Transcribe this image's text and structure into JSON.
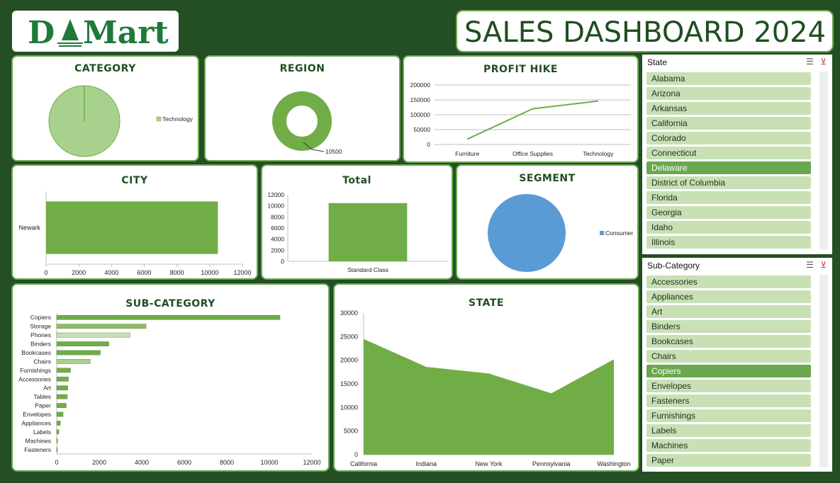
{
  "header": {
    "logo_text": "DMart",
    "title": "SALES DASHBOARD 2024"
  },
  "colors": {
    "background": "#244e24",
    "accent_green": "#70ad47",
    "light_green": "#a9d18e",
    "blue": "#5b9bd5",
    "title_green": "#1f4e1f"
  },
  "cards": {
    "category": "CATEGORY",
    "region": "REGION",
    "profit": "PROFIT HIKE",
    "city": "CITY",
    "total": "Total",
    "segment": "SEGMENT",
    "subcategory": "SUB-CATEGORY",
    "state": "STATE"
  },
  "chart_data": [
    {
      "id": "category",
      "type": "pie",
      "categories": [
        "Technology"
      ],
      "values": [
        10500
      ],
      "legend": [
        "Technology"
      ],
      "legend_position": "right"
    },
    {
      "id": "region",
      "type": "pie",
      "donut": true,
      "categories": [
        ""
      ],
      "values": [
        10500
      ],
      "data_labels": [
        "10500"
      ]
    },
    {
      "id": "profit",
      "type": "line",
      "categories": [
        "Furniture",
        "Office Supplies",
        "Technology"
      ],
      "values": [
        18000,
        120000,
        146000
      ],
      "ylim": [
        0,
        200000
      ],
      "yticks": [
        "0",
        "50000",
        "100000",
        "150000",
        "200000"
      ],
      "grid": true
    },
    {
      "id": "city",
      "type": "bar",
      "orientation": "horizontal",
      "categories": [
        "Newark"
      ],
      "values": [
        10500
      ],
      "xlim": [
        0,
        12000
      ],
      "xticks": [
        "0",
        "2000",
        "4000",
        "6000",
        "8000",
        "10000",
        "12000"
      ]
    },
    {
      "id": "total",
      "type": "bar",
      "categories": [
        "Standard Class"
      ],
      "values": [
        10500
      ],
      "ylim": [
        0,
        12000
      ],
      "yticks": [
        "0",
        "2000",
        "4000",
        "6000",
        "8000",
        "10000",
        "12000"
      ]
    },
    {
      "id": "segment",
      "type": "pie",
      "categories": [
        "Consumer"
      ],
      "values": [
        10500
      ],
      "legend": [
        "Consumer"
      ],
      "legend_position": "right"
    },
    {
      "id": "subcategory",
      "type": "bar",
      "orientation": "horizontal",
      "categories": [
        "Copiers",
        "Storage",
        "Phones",
        "Binders",
        "Bookcases",
        "Chairs",
        "Furnishings",
        "Accessories",
        "Art",
        "Tables",
        "Paper",
        "Envelopes",
        "Appliances",
        "Labels",
        "Machines",
        "Fasteners"
      ],
      "values": [
        10500,
        4200,
        3450,
        2450,
        2050,
        1580,
        650,
        550,
        520,
        500,
        450,
        300,
        170,
        100,
        40,
        20
      ],
      "xlim": [
        0,
        12000
      ],
      "xticks": [
        "0",
        "2000",
        "4000",
        "6000",
        "8000",
        "10000",
        "12000"
      ]
    },
    {
      "id": "state",
      "type": "area",
      "categories": [
        "California",
        "Indiana",
        "New York",
        "Pennsylvania",
        "Washington"
      ],
      "values": [
        24500,
        18600,
        17200,
        13000,
        20200
      ],
      "ylim": [
        0,
        30000
      ],
      "yticks": [
        "0",
        "5000",
        "10000",
        "15000",
        "20000",
        "25000",
        "30000"
      ]
    }
  ],
  "slicers": {
    "state": {
      "title": "State",
      "items": [
        "Alabama",
        "Arizona",
        "Arkansas",
        "California",
        "Colorado",
        "Connecticut",
        "Delaware",
        "District of Columbia",
        "Florida",
        "Georgia",
        "Idaho",
        "Illinois"
      ],
      "selected": "Delaware"
    },
    "subcategory": {
      "title": "Sub-Category",
      "items": [
        "Accessories",
        "Appliances",
        "Art",
        "Binders",
        "Bookcases",
        "Chairs",
        "Copiers",
        "Envelopes",
        "Fasteners",
        "Furnishings",
        "Labels",
        "Machines",
        "Paper"
      ],
      "selected": "Copiers"
    }
  }
}
